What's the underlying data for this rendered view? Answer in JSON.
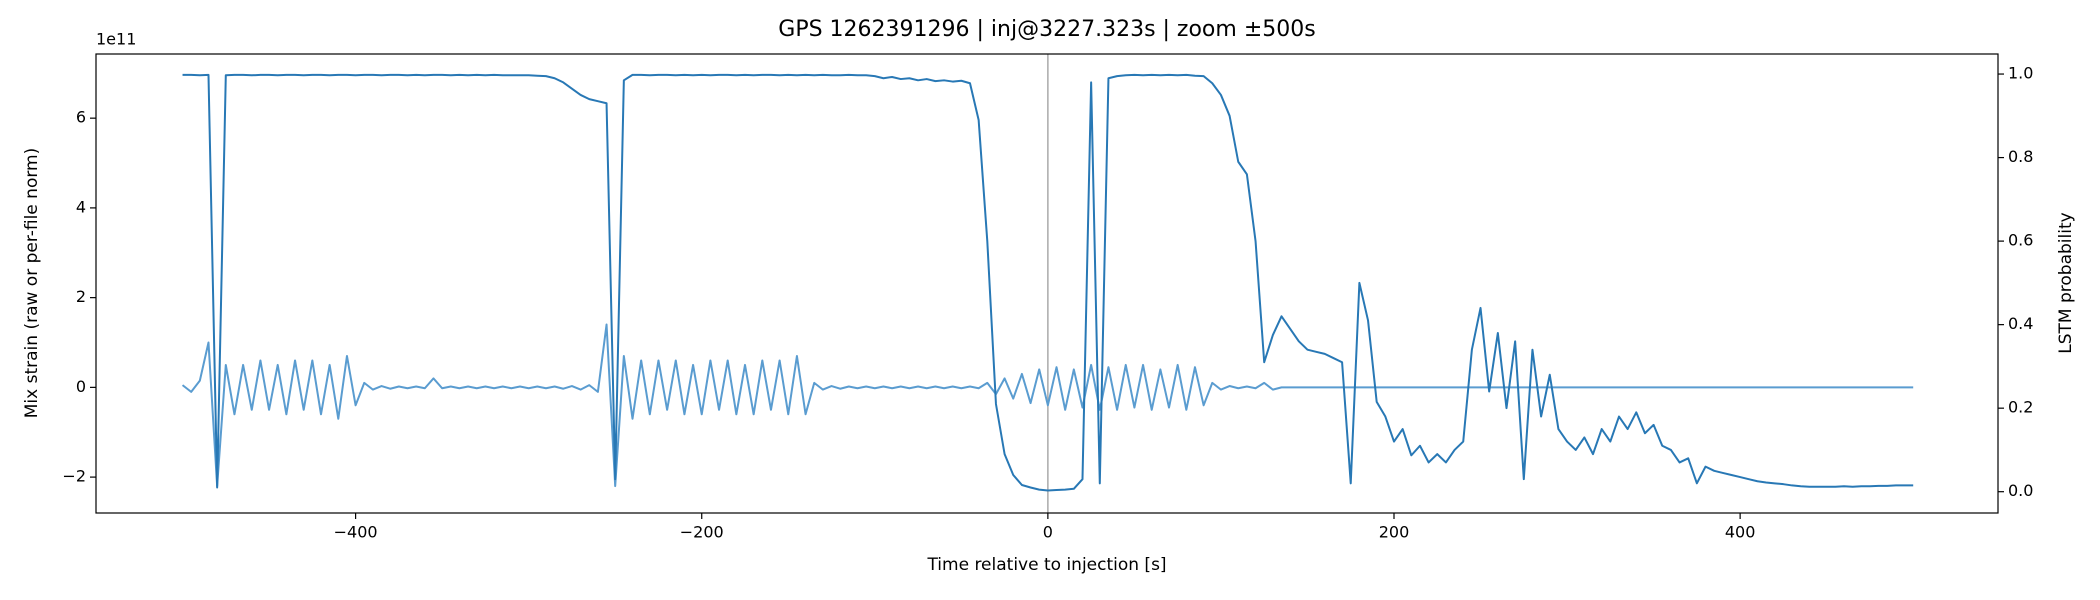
{
  "chart_data": {
    "type": "line",
    "title": "GPS 1262391296 | inj@3227.323s | zoom ±500s",
    "xlabel": "Time relative to injection [s]",
    "ylabel": "Mix strain (raw or per-file norm)",
    "y2label": "LSTM probability",
    "y_offset_label": "1e11",
    "xlim": [
      -550,
      549
    ],
    "ylim": [
      -2.8,
      7.43
    ],
    "y2lim": [
      -0.051,
      1.048
    ],
    "xticks": [
      {
        "value": -400,
        "label": "−400"
      },
      {
        "value": -200,
        "label": "−200"
      },
      0,
      200,
      400
    ],
    "yticks": [
      {
        "value": -2,
        "label": "−2"
      },
      0,
      2,
      4,
      6
    ],
    "y2ticks": [
      {
        "value": 0,
        "label": "0.0"
      },
      0.2,
      0.4,
      0.6,
      0.8,
      {
        "value": 1,
        "label": "1.0"
      }
    ],
    "vline_x": 0,
    "x": [
      -500,
      -495,
      -490,
      -485,
      -480,
      -475,
      -470,
      -465,
      -460,
      -455,
      -450,
      -445,
      -440,
      -435,
      -430,
      -425,
      -420,
      -415,
      -410,
      -405,
      -400,
      -395,
      -390,
      -385,
      -380,
      -375,
      -370,
      -365,
      -360,
      -355,
      -350,
      -345,
      -340,
      -335,
      -330,
      -325,
      -320,
      -315,
      -310,
      -305,
      -300,
      -295,
      -290,
      -285,
      -280,
      -275,
      -270,
      -265,
      -260,
      -255,
      -250,
      -245,
      -240,
      -235,
      -230,
      -225,
      -220,
      -215,
      -210,
      -205,
      -200,
      -195,
      -190,
      -185,
      -180,
      -175,
      -170,
      -165,
      -160,
      -155,
      -150,
      -145,
      -140,
      -135,
      -130,
      -125,
      -120,
      -115,
      -110,
      -105,
      -100,
      -95,
      -90,
      -85,
      -80,
      -75,
      -70,
      -65,
      -60,
      -55,
      -50,
      -45,
      -40,
      -35,
      -30,
      -25,
      -20,
      -15,
      -10,
      -5,
      0,
      5,
      10,
      15,
      20,
      25,
      30,
      35,
      40,
      45,
      50,
      55,
      60,
      65,
      70,
      75,
      80,
      85,
      90,
      95,
      100,
      105,
      110,
      115,
      120,
      125,
      130,
      135,
      140,
      145,
      150,
      155,
      160,
      165,
      170,
      175,
      180,
      185,
      190,
      195,
      200,
      205,
      210,
      215,
      220,
      225,
      230,
      235,
      240,
      245,
      250,
      255,
      260,
      265,
      270,
      275,
      280,
      285,
      290,
      295,
      300,
      305,
      310,
      315,
      320,
      325,
      330,
      335,
      340,
      345,
      350,
      355,
      360,
      365,
      370,
      375,
      380,
      385,
      390,
      395,
      400,
      405,
      410,
      415,
      420,
      425,
      430,
      435,
      440,
      445,
      450,
      455,
      460,
      465,
      470,
      475,
      480,
      485,
      490,
      495,
      500
    ],
    "series": [
      {
        "color": "#5a9cd0",
        "axis": "y",
        "values": [
          0.05,
          -0.1,
          0.15,
          1.0,
          -2.2,
          0.5,
          -0.6,
          0.5,
          -0.5,
          0.6,
          -0.5,
          0.5,
          -0.6,
          0.6,
          -0.5,
          0.6,
          -0.6,
          0.5,
          -0.7,
          0.7,
          -0.4,
          0.1,
          -0.05,
          0.03,
          -0.03,
          0.02,
          -0.02,
          0.02,
          -0.02,
          0.2,
          -0.02,
          0.02,
          -0.02,
          0.02,
          -0.02,
          0.02,
          -0.02,
          0.02,
          -0.02,
          0.02,
          -0.02,
          0.02,
          -0.02,
          0.02,
          -0.03,
          0.03,
          -0.05,
          0.05,
          -0.1,
          1.4,
          -2.2,
          0.7,
          -0.7,
          0.6,
          -0.6,
          0.6,
          -0.5,
          0.6,
          -0.6,
          0.5,
          -0.6,
          0.6,
          -0.5,
          0.6,
          -0.6,
          0.5,
          -0.6,
          0.6,
          -0.5,
          0.6,
          -0.6,
          0.7,
          -0.6,
          0.1,
          -0.05,
          0.03,
          -0.03,
          0.02,
          -0.02,
          0.02,
          -0.02,
          0.02,
          -0.02,
          0.02,
          -0.02,
          0.02,
          -0.02,
          0.02,
          -0.02,
          0.02,
          -0.02,
          0.02,
          -0.02,
          0.1,
          -0.15,
          0.2,
          -0.25,
          0.3,
          -0.35,
          0.4,
          -0.4,
          0.45,
          -0.5,
          0.4,
          -0.45,
          0.5,
          -0.5,
          0.45,
          -0.5,
          0.5,
          -0.45,
          0.5,
          -0.5,
          0.4,
          -0.45,
          0.5,
          -0.5,
          0.45,
          -0.4,
          0.1,
          -0.05,
          0.03,
          -0.02,
          0.02,
          -0.02,
          0.1,
          -0.05,
          0,
          0,
          0,
          0,
          0,
          0,
          0,
          0,
          0,
          0,
          0,
          0,
          0,
          0,
          0,
          0,
          0,
          0,
          0,
          0,
          0,
          0,
          0,
          0,
          0,
          0,
          0,
          0,
          0,
          0,
          0,
          0,
          0,
          0,
          0,
          0,
          0,
          0,
          0,
          0,
          0,
          0,
          0,
          0,
          0,
          0,
          0,
          0,
          0,
          0,
          0,
          0,
          0,
          0,
          0,
          0,
          0,
          0,
          0,
          0,
          0,
          0,
          0,
          0,
          0,
          0,
          0,
          0,
          0,
          0,
          0,
          0,
          0,
          0
        ]
      },
      {
        "color": "#2878b5",
        "axis": "y2",
        "values": [
          0.998,
          0.998,
          0.997,
          0.998,
          0.01,
          0.997,
          0.998,
          0.998,
          0.997,
          0.998,
          0.998,
          0.997,
          0.998,
          0.998,
          0.997,
          0.998,
          0.998,
          0.997,
          0.998,
          0.998,
          0.997,
          0.998,
          0.998,
          0.997,
          0.998,
          0.998,
          0.997,
          0.998,
          0.997,
          0.998,
          0.998,
          0.997,
          0.998,
          0.997,
          0.998,
          0.997,
          0.998,
          0.997,
          0.997,
          0.997,
          0.997,
          0.996,
          0.995,
          0.99,
          0.98,
          0.965,
          0.95,
          0.94,
          0.935,
          0.93,
          0.03,
          0.985,
          0.998,
          0.998,
          0.997,
          0.998,
          0.998,
          0.997,
          0.998,
          0.997,
          0.998,
          0.997,
          0.998,
          0.998,
          0.997,
          0.998,
          0.997,
          0.998,
          0.998,
          0.997,
          0.998,
          0.997,
          0.998,
          0.997,
          0.998,
          0.997,
          0.997,
          0.998,
          0.997,
          0.997,
          0.995,
          0.99,
          0.993,
          0.988,
          0.99,
          0.985,
          0.988,
          0.983,
          0.985,
          0.982,
          0.984,
          0.978,
          0.89,
          0.6,
          0.21,
          0.09,
          0.04,
          0.016,
          0.01,
          0.005,
          0.003,
          0.004,
          0.005,
          0.007,
          0.03,
          0.98,
          0.02,
          0.99,
          0.995,
          0.997,
          0.998,
          0.997,
          0.998,
          0.997,
          0.998,
          0.997,
          0.998,
          0.996,
          0.995,
          0.978,
          0.95,
          0.9,
          0.79,
          0.76,
          0.6,
          0.31,
          0.375,
          0.42,
          0.39,
          0.36,
          0.34,
          0.335,
          0.33,
          0.32,
          0.31,
          0.02,
          0.5,
          0.41,
          0.215,
          0.18,
          0.12,
          0.15,
          0.087,
          0.11,
          0.07,
          0.09,
          0.07,
          0.1,
          0.12,
          0.34,
          0.44,
          0.24,
          0.38,
          0.2,
          0.36,
          0.03,
          0.34,
          0.18,
          0.28,
          0.15,
          0.12,
          0.1,
          0.13,
          0.09,
          0.15,
          0.12,
          0.18,
          0.15,
          0.19,
          0.14,
          0.16,
          0.11,
          0.1,
          0.07,
          0.08,
          0.02,
          0.06,
          0.05,
          0.045,
          0.04,
          0.035,
          0.03,
          0.025,
          0.022,
          0.02,
          0.018,
          0.015,
          0.013,
          0.012,
          0.012,
          0.012,
          0.012,
          0.013,
          0.012,
          0.013,
          0.013,
          0.014,
          0.014,
          0.015,
          0.015,
          0.015
        ]
      }
    ]
  }
}
